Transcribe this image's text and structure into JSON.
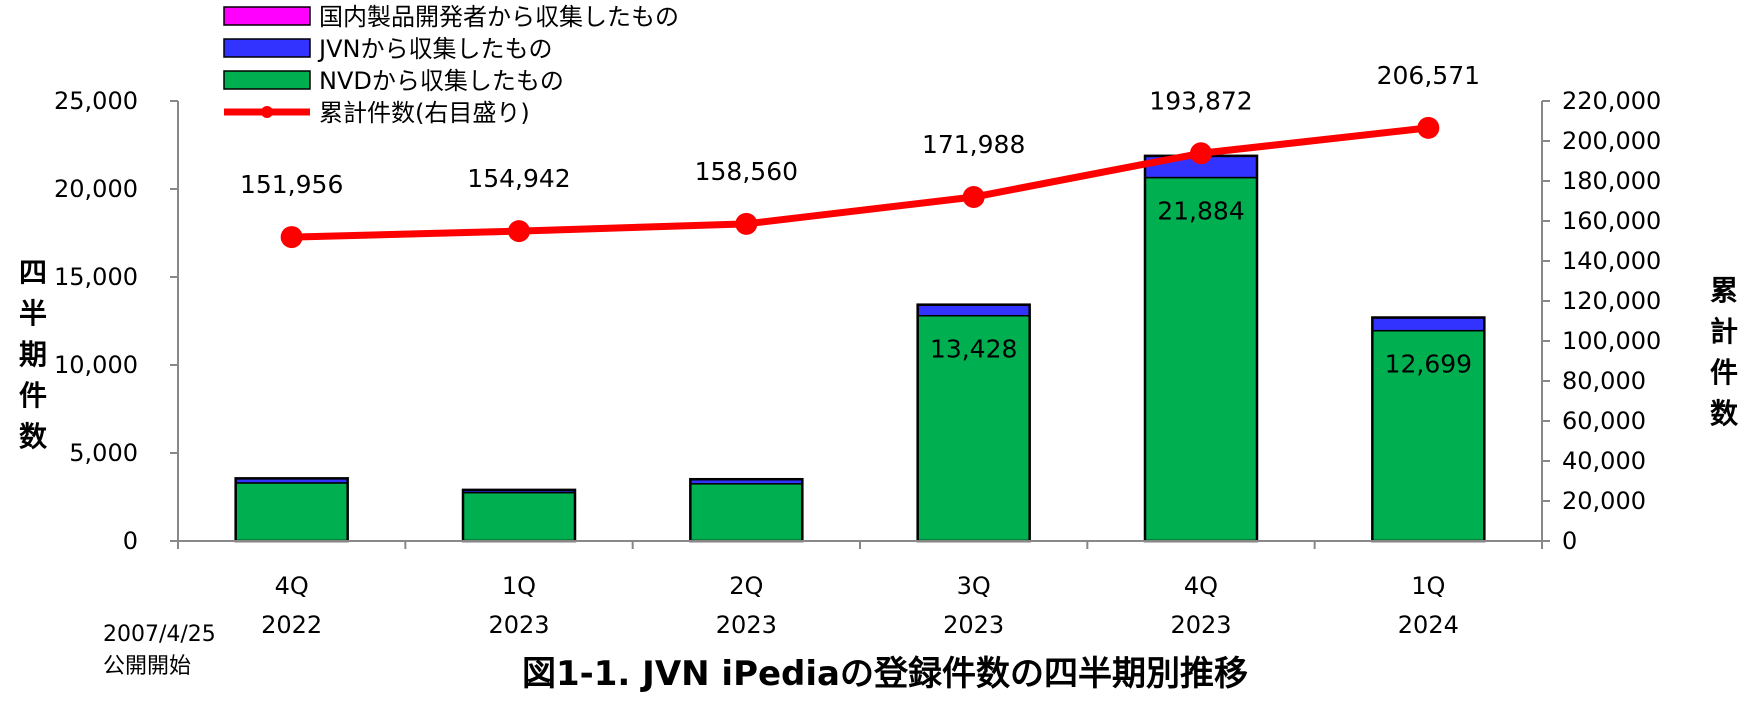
{
  "chart_data": {
    "type": "bar",
    "stacked": true,
    "title": "図1-1. JVN iPediaの登録件数の四半期別推移",
    "categories": [
      {
        "quarter": "4Q",
        "year": "2022"
      },
      {
        "quarter": "1Q",
        "year": "2023"
      },
      {
        "quarter": "2Q",
        "year": "2023"
      },
      {
        "quarter": "3Q",
        "year": "2023"
      },
      {
        "quarter": "4Q",
        "year": "2023"
      },
      {
        "quarter": "1Q",
        "year": "2024"
      }
    ],
    "series": [
      {
        "name": "NVDから収集したもの",
        "color": "#00b050",
        "values": [
          3300,
          2750,
          3250,
          12800,
          20650,
          11950
        ]
      },
      {
        "name": "JVNから収集したもの",
        "color": "#3333ff",
        "values": [
          250,
          150,
          250,
          620,
          1230,
          740
        ]
      },
      {
        "name": "国内製品開発者から収集したもの",
        "color": "#ff00ff",
        "values": [
          10,
          5,
          10,
          8,
          4,
          9
        ]
      }
    ],
    "bar_labels": [
      "",
      "",
      "",
      "13,428",
      "21,884",
      "12,699"
    ],
    "line_series": {
      "name": "累計件数(右目盛り)",
      "color": "#ff0000",
      "values": [
        151956,
        154942,
        158560,
        171988,
        193872,
        206571
      ],
      "labels": [
        "151,956",
        "154,942",
        "158,560",
        "171,988",
        "193,872",
        "206,571"
      ]
    },
    "left_axis": {
      "title": "四半期件数",
      "title_chars": [
        "四",
        "半",
        "期",
        "件",
        "数"
      ],
      "min": 0,
      "max": 25000,
      "step": 5000,
      "tick_labels": [
        "0",
        "5,000",
        "10,000",
        "15,000",
        "20,000",
        "25,000"
      ]
    },
    "right_axis": {
      "title": "累計件数",
      "title_chars": [
        "累",
        "計",
        "件",
        "数"
      ],
      "min": 0,
      "max": 220000,
      "step": 20000,
      "tick_labels": [
        "0",
        "20,000",
        "40,000",
        "60,000",
        "80,000",
        "100,000",
        "120,000",
        "140,000",
        "160,000",
        "180,000",
        "200,000",
        "220,000"
      ]
    },
    "legend": {
      "placement": "top-left",
      "entries": [
        {
          "label": "国内製品開発者から収集したもの",
          "kind": "box",
          "color": "#ff00ff"
        },
        {
          "label": "JVNから収集したもの",
          "kind": "box",
          "color": "#3333ff"
        },
        {
          "label": "NVDから収集したもの",
          "kind": "box",
          "color": "#00b050"
        },
        {
          "label": "累計件数(右目盛り)",
          "kind": "line",
          "color": "#ff0000"
        }
      ]
    },
    "grid": false,
    "note_lines": [
      "2007/4/25",
      "公開開始"
    ]
  }
}
